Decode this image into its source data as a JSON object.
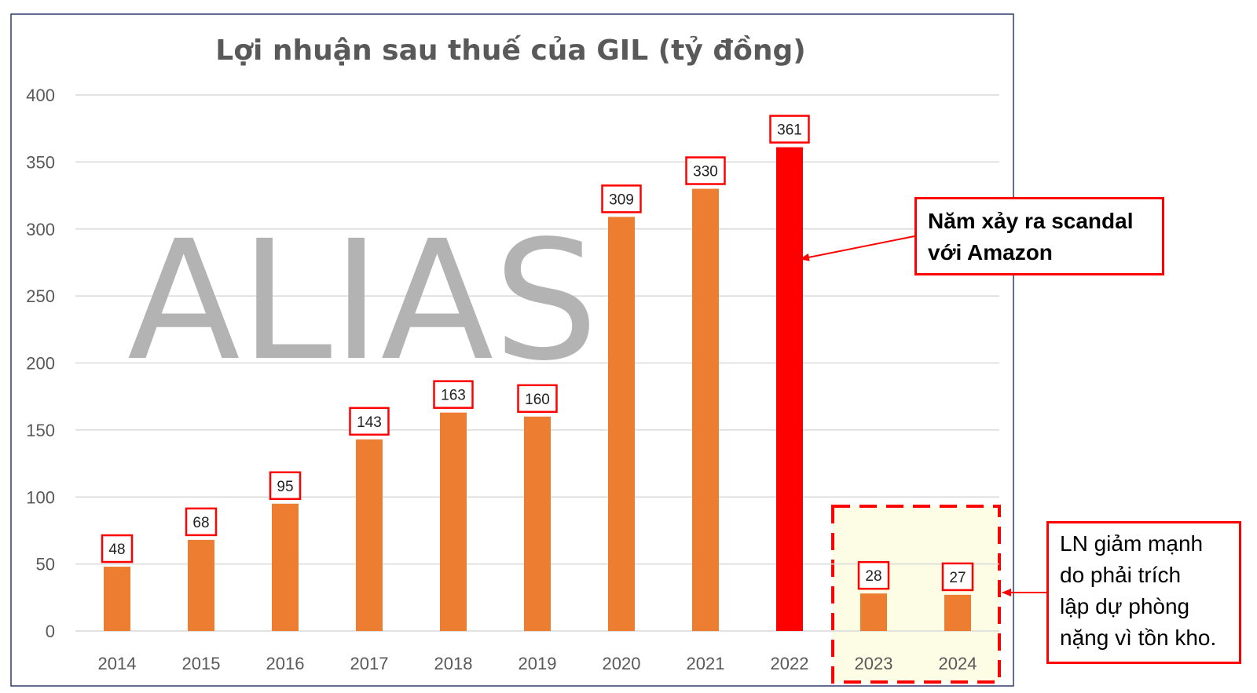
{
  "chart_data": {
    "type": "bar",
    "title": "Lợi nhuận sau thuế của GIL (tỷ đồng)",
    "categories": [
      "2014",
      "2015",
      "2016",
      "2017",
      "2018",
      "2019",
      "2020",
      "2021",
      "2022",
      "2023",
      "2024"
    ],
    "values": [
      48,
      68,
      95,
      143,
      163,
      160,
      309,
      330,
      361,
      28,
      27
    ],
    "ylim": [
      0,
      400
    ],
    "yticks": [
      0,
      50,
      100,
      150,
      200,
      250,
      300,
      350,
      400
    ],
    "xlabel": "",
    "ylabel": "",
    "grid": true,
    "colors": {
      "bar": "#ed7d31",
      "highlight_bar": "#ff0000",
      "label_border": "#ff0000",
      "gridline": "#d9d9d9",
      "highlight_zone_fill": "#fdfde6",
      "frame": "#2f3b6e"
    },
    "highlight_index": 8,
    "highlight_zone_categories": [
      "2023",
      "2024"
    ]
  },
  "watermark": "ALIAS",
  "annotations": {
    "scandal_lines": [
      "Năm xảy ra scandal",
      "với Amazon"
    ],
    "provision_lines": [
      "LN giảm mạnh",
      "do phải trích",
      "lập dự phòng",
      "nặng vì tồn kho."
    ]
  }
}
